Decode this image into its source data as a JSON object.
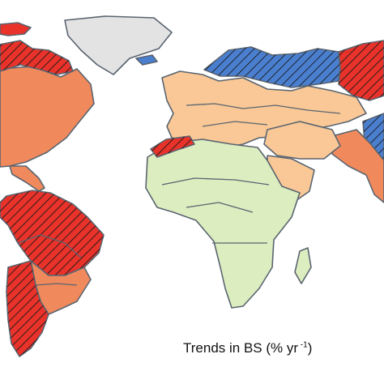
{
  "legend": {
    "title_prefix": "Trends in BS (% yr",
    "title_superscript": " -1",
    "title_suffix": ")"
  },
  "colors": {
    "strong_increase": "#e8322a",
    "moderate_increase": "#f08a5c",
    "slight_increase": "#f9c896",
    "no_trend": "#dcedc0",
    "decrease": "#4a7fd0",
    "no_data": "#e3e3e3",
    "water": "#ffffff",
    "border": "#5a6470"
  },
  "regions": [
    {
      "name": "greenland",
      "class": "no_data",
      "hatched": false
    },
    {
      "name": "canada-north",
      "class": "strong_increase",
      "hatched": true
    },
    {
      "name": "north-america",
      "class": "moderate_increase",
      "hatched": false
    },
    {
      "name": "south-america-north",
      "class": "strong_increase",
      "hatched": true
    },
    {
      "name": "south-america-east",
      "class": "moderate_increase",
      "hatched": false
    },
    {
      "name": "south-america-south",
      "class": "strong_increase",
      "hatched": true
    },
    {
      "name": "scandinavia-russia-west",
      "class": "decrease",
      "hatched": true
    },
    {
      "name": "siberia",
      "class": "strong_increase",
      "hatched": true
    },
    {
      "name": "europe",
      "class": "slight_increase",
      "hatched": false
    },
    {
      "name": "central-asia",
      "class": "slight_increase",
      "hatched": false
    },
    {
      "name": "east-asia",
      "class": "decrease",
      "hatched": true
    },
    {
      "name": "south-asia",
      "class": "moderate_increase",
      "hatched": false
    },
    {
      "name": "north-africa-coast",
      "class": "strong_increase",
      "hatched": true
    },
    {
      "name": "arabia",
      "class": "slight_increase",
      "hatched": false
    },
    {
      "name": "africa",
      "class": "no_trend",
      "hatched": false
    }
  ]
}
